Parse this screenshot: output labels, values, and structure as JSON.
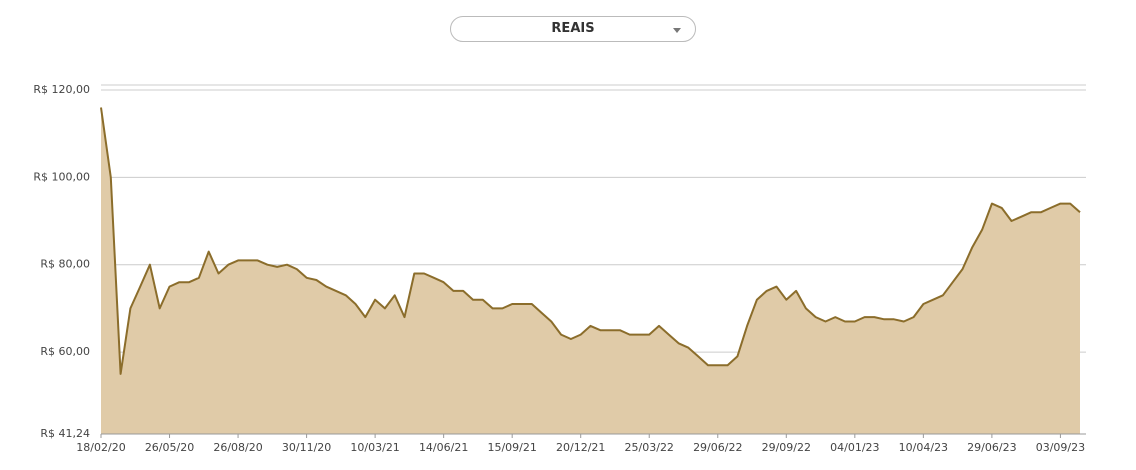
{
  "dropdown": "REAIS",
  "chart_data": {
    "type": "area",
    "categories": [
      "18/02/20",
      null,
      null,
      null,
      null,
      null,
      null,
      "26/05/20",
      null,
      null,
      null,
      null,
      null,
      null,
      "26/08/20",
      null,
      null,
      null,
      null,
      null,
      null,
      "30/11/20",
      null,
      null,
      null,
      null,
      null,
      null,
      "10/03/21",
      null,
      null,
      null,
      null,
      null,
      null,
      "14/06/21",
      null,
      null,
      null,
      null,
      null,
      null,
      "15/09/21",
      null,
      null,
      null,
      null,
      null,
      null,
      "20/12/21",
      null,
      null,
      null,
      null,
      null,
      null,
      "25/03/22",
      null,
      null,
      null,
      null,
      null,
      null,
      "29/06/22",
      null,
      null,
      null,
      null,
      null,
      null,
      "29/09/22",
      null,
      null,
      null,
      null,
      null,
      null,
      "04/01/23",
      null,
      null,
      null,
      null,
      null,
      null,
      "10/04/23",
      null,
      null,
      null,
      null,
      null,
      null,
      "29/06/23",
      null,
      null,
      null,
      null,
      null,
      null,
      "03/09/23",
      null,
      null
    ],
    "series": [
      {
        "name": "REAIS",
        "color": "#8b6d2b",
        "fill": "#e0cba8",
        "values": [
          116,
          100,
          55,
          70,
          75,
          80,
          70,
          75,
          76,
          76,
          77,
          83,
          78,
          80,
          81,
          81,
          81,
          80,
          79.5,
          80,
          79,
          77,
          76.5,
          75,
          74,
          73,
          71,
          68,
          72,
          70,
          73,
          68,
          78,
          78,
          77,
          76,
          74,
          74,
          72,
          72,
          70,
          70,
          71,
          71,
          71,
          69,
          67,
          64,
          63,
          64,
          66,
          65,
          65,
          65,
          64,
          64,
          64,
          66,
          64,
          62,
          61,
          59,
          57,
          57,
          57,
          59,
          66,
          72,
          74,
          75,
          72,
          74,
          70,
          68,
          67,
          68,
          67,
          67,
          68,
          68,
          67.5,
          67.5,
          67,
          68,
          71,
          72,
          73,
          76,
          79,
          84,
          88,
          94,
          93,
          90,
          91,
          92,
          92,
          93,
          94,
          94,
          92
        ]
      }
    ],
    "ylim": [
      41.24,
      121.15
    ],
    "yticks": [
      {
        "value": 41.24,
        "label": "R$ 41,24"
      },
      {
        "value": 60,
        "label": "R$ 60,00"
      },
      {
        "value": 80,
        "label": "R$ 80,00"
      },
      {
        "value": 100,
        "label": "R$ 100,00"
      },
      {
        "value": 120,
        "label": "R$ 120,00"
      }
    ],
    "grid": true
  }
}
